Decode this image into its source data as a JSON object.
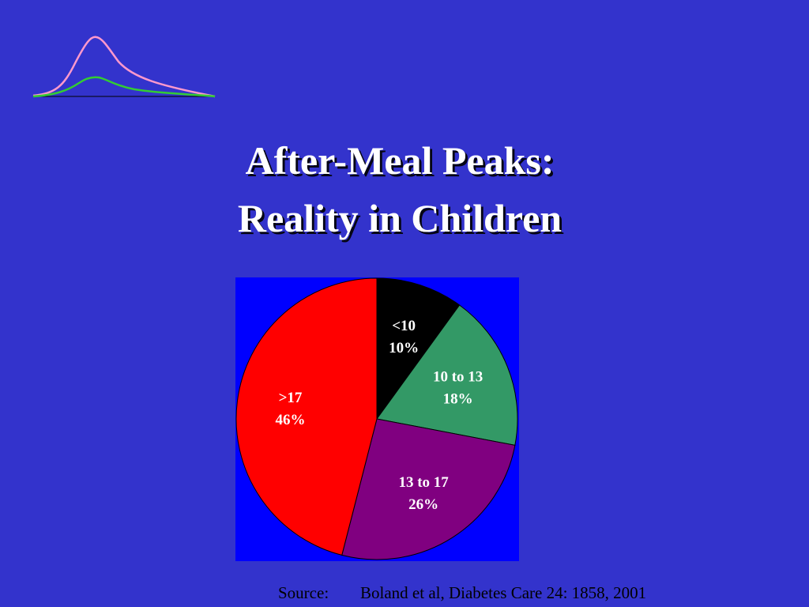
{
  "chart_data": {
    "type": "pie",
    "title": [
      "After-Meal Peaks:",
      "Reality in Children"
    ],
    "categories": [
      "<10",
      "10 to 13",
      "13 to 17",
      ">17"
    ],
    "values": [
      10,
      18,
      26,
      46
    ],
    "value_labels": [
      "10%",
      "18%",
      "26%",
      "46%"
    ],
    "colors": [
      "#000000",
      "#339966",
      "#800080",
      "#ff0000"
    ],
    "source_label": "Source:",
    "source": "Boland et al, Diabetes Care 24: 1858, 2001"
  }
}
